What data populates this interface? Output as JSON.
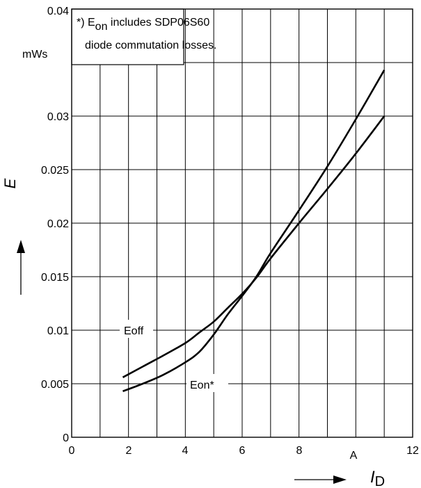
{
  "chart_data": {
    "type": "line",
    "xlim": [
      0,
      12
    ],
    "ylim": [
      0,
      0.04
    ],
    "x_ticks": [
      "0",
      "2",
      "4",
      "6",
      "8",
      "12"
    ],
    "x_unit": "A",
    "y_ticks": [
      "0",
      "0.005",
      "0.01",
      "0.015",
      "0.02",
      "0.025",
      "0.03",
      "0.04"
    ],
    "y_unit": "mWs",
    "xlabel": {
      "main": "I",
      "sub": "D"
    },
    "ylabel": "E",
    "grid": true,
    "note": {
      "prefix": "*) E",
      "sub": "on",
      "line1_rest": " includes SDP06S60",
      "line2": "diode commutation losses."
    },
    "series": [
      {
        "name": "Eoff",
        "x": [
          1.8,
          2.5,
          3.2,
          4.0,
          4.5,
          5.0,
          5.5,
          6.0,
          6.5,
          7.0,
          8.0,
          9.0,
          10.0,
          11.0
        ],
        "y": [
          0.0056,
          0.0066,
          0.0076,
          0.0088,
          0.0098,
          0.0108,
          0.0121,
          0.0134,
          0.0149,
          0.0167,
          0.02,
          0.0232,
          0.0265,
          0.03
        ]
      },
      {
        "name": "Eon*",
        "x": [
          1.8,
          2.5,
          3.2,
          4.0,
          4.5,
          5.0,
          5.5,
          6.0,
          6.5,
          7.0,
          8.0,
          9.0,
          10.0,
          11.0
        ],
        "y": [
          0.0043,
          0.005,
          0.0058,
          0.007,
          0.008,
          0.0096,
          0.0115,
          0.0132,
          0.015,
          0.0172,
          0.0212,
          0.0253,
          0.0297,
          0.0343
        ]
      }
    ]
  }
}
